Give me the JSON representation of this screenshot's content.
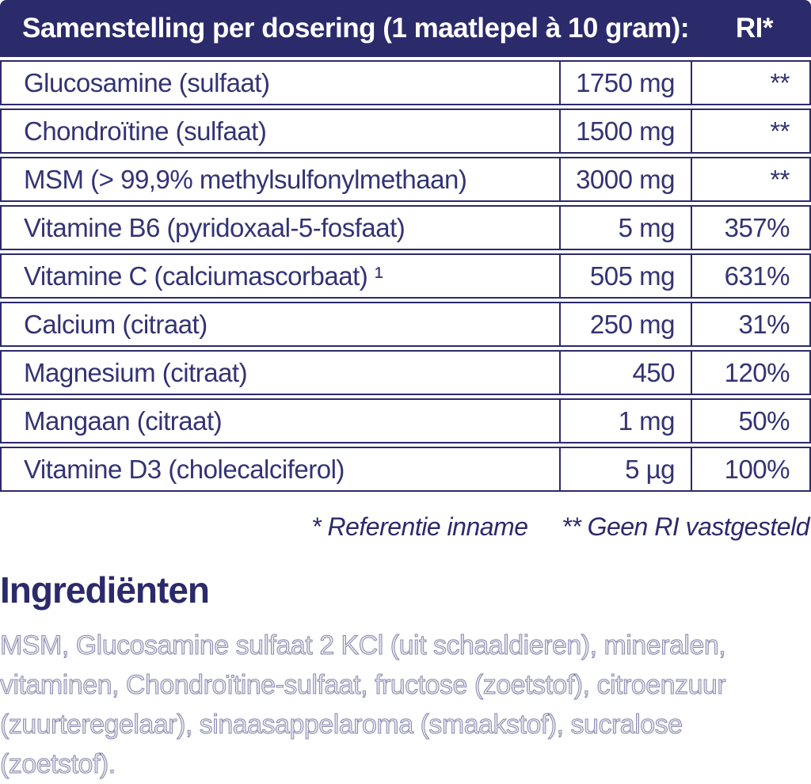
{
  "table": {
    "header": {
      "title": "Samenstelling per dosering (1 maatlepel à 10 gram):",
      "ri_label": "RI*"
    },
    "rows": [
      {
        "name": "Glucosamine (sulfaat)",
        "amount": "1750 mg",
        "ri": "**"
      },
      {
        "name": "Chondroïtine (sulfaat)",
        "amount": "1500 mg",
        "ri": "**"
      },
      {
        "name": "MSM (> 99,9% methylsulfonylmethaan)",
        "amount": "3000 mg",
        "ri": "**"
      },
      {
        "name": "Vitamine B6 (pyridoxaal-5-fosfaat)",
        "amount": "5 mg",
        "ri": "357%"
      },
      {
        "name": "Vitamine C (calciumascorbaat) ¹",
        "amount": "505 mg",
        "ri": "631%"
      },
      {
        "name": "Calcium (citraat)",
        "amount": "250 mg",
        "ri": "31%"
      },
      {
        "name": "Magnesium (citraat)",
        "amount": "450",
        "ri": "120%"
      },
      {
        "name": "Mangaan (citraat)",
        "amount": "1 mg",
        "ri": "50%"
      },
      {
        "name": "Vitamine D3 (cholecalciferol)",
        "amount": "5 µg",
        "ri": "100%"
      }
    ]
  },
  "footnote": {
    "reference_note": "* Referentie inname",
    "no_ri_note": "** Geen RI vastgesteld"
  },
  "ingredients": {
    "heading": "Ingrediënten",
    "text": "MSM, Glucosamine sulfaat 2 KCl (uit schaaldieren), mineralen, vitaminen, Chondroïtine-sulfaat, fructose (zoetstof), citroenzuur (zuurteregelaar), sinaasappelaroma (smaakstof), sucralose (zoetstof)."
  },
  "colors": {
    "navy": "#2b2a6b",
    "row_text": "#333375",
    "background": "#ffffff"
  }
}
